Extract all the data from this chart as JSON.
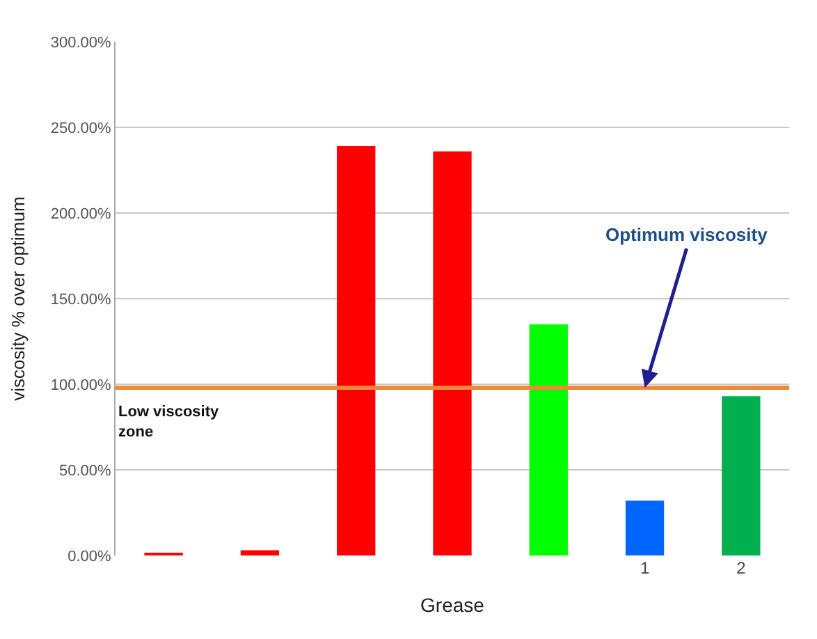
{
  "chart_data": {
    "type": "bar",
    "xlabel": "Grease",
    "ylabel": "viscosity % over optimum",
    "categories": [
      null,
      null,
      null,
      null,
      null,
      "1",
      "2"
    ],
    "values": [
      1,
      3,
      239,
      236,
      135,
      32,
      93
    ],
    "colors": [
      "#ff0000",
      "#ff0000",
      "#ff0000",
      "#ff0000",
      "#00ff00",
      "#0066ff",
      "#00b050"
    ],
    "ylim": [
      0,
      300
    ],
    "yticks": [
      {
        "value": 0,
        "label": "0.00%"
      },
      {
        "value": 50,
        "label": "50.00%"
      },
      {
        "value": 100,
        "label": "100.00%"
      },
      {
        "value": 150,
        "label": "150.00%"
      },
      {
        "value": 200,
        "label": "200.00%"
      },
      {
        "value": 250,
        "label": "250.00%"
      },
      {
        "value": 300,
        "label": "300.00%"
      }
    ],
    "ref_lines": [
      {
        "axis": "y",
        "value": 98,
        "label": null,
        "color": "#f0883a"
      }
    ],
    "annotations": [
      {
        "text": "Optimum viscosity",
        "x": "1",
        "y": 98
      },
      "Low viscosity zone"
    ],
    "grid": "y"
  }
}
